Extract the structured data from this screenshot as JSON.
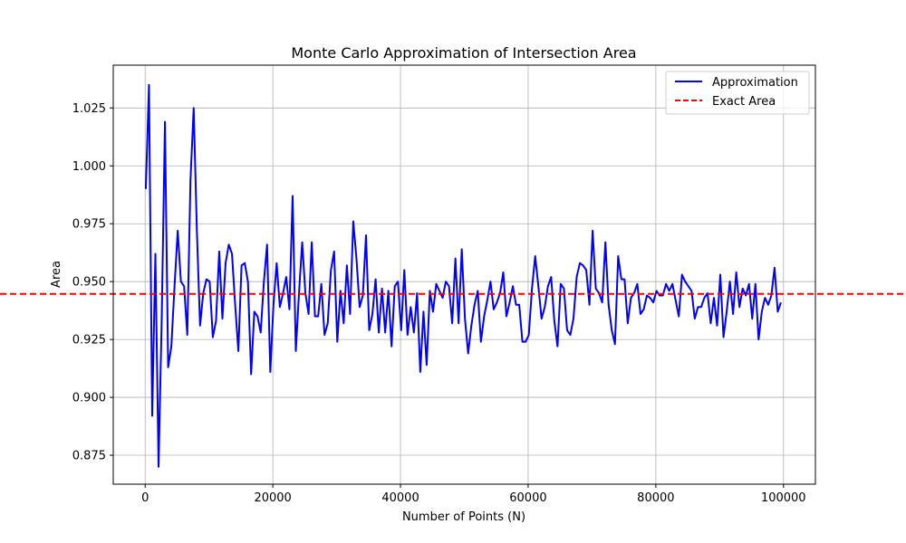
{
  "chart_data": {
    "type": "line",
    "title": "Monte Carlo Approximation of Intersection Area",
    "xlabel": "Number of Points (N)",
    "ylabel": "Area",
    "xlim": [
      -5000,
      105000
    ],
    "ylim": [
      0.8625,
      1.0435
    ],
    "grid": true,
    "legend_position": "top-right",
    "xticks": [
      0,
      20000,
      40000,
      60000,
      80000,
      100000
    ],
    "xtick_labels": [
      "0",
      "20000",
      "40000",
      "60000",
      "80000",
      "100000"
    ],
    "yticks": [
      0.875,
      0.9,
      0.925,
      0.95,
      0.975,
      1.0,
      1.025
    ],
    "ytick_labels": [
      "0.875",
      "0.900",
      "0.925",
      "0.950",
      "0.975",
      "1.000",
      "1.025"
    ],
    "series": [
      {
        "name": "Approximation",
        "color": "#0000ff",
        "style": "solid",
        "x_start": 100,
        "x_step": 500,
        "values": [
          0.99,
          1.035,
          0.892,
          0.962,
          0.87,
          0.935,
          1.019,
          0.913,
          0.922,
          0.948,
          0.972,
          0.95,
          0.948,
          0.927,
          0.994,
          1.025,
          0.972,
          0.931,
          0.945,
          0.951,
          0.95,
          0.926,
          0.933,
          0.963,
          0.934,
          0.958,
          0.966,
          0.962,
          0.94,
          0.92,
          0.957,
          0.958,
          0.95,
          0.91,
          0.937,
          0.935,
          0.928,
          0.95,
          0.966,
          0.911,
          0.94,
          0.958,
          0.939,
          0.945,
          0.952,
          0.938,
          0.987,
          0.92,
          0.945,
          0.967,
          0.945,
          0.936,
          0.967,
          0.935,
          0.935,
          0.949,
          0.927,
          0.932,
          0.955,
          0.963,
          0.924,
          0.946,
          0.932,
          0.957,
          0.936,
          0.976,
          0.96,
          0.939,
          0.944,
          0.97,
          0.929,
          0.936,
          0.951,
          0.928,
          0.947,
          0.928,
          0.946,
          0.922,
          0.948,
          0.95,
          0.929,
          0.955,
          0.927,
          0.939,
          0.928,
          0.945,
          0.911,
          0.937,
          0.914,
          0.946,
          0.937,
          0.949,
          0.946,
          0.943,
          0.95,
          0.948,
          0.932,
          0.96,
          0.932,
          0.964,
          0.934,
          0.919,
          0.931,
          0.94,
          0.946,
          0.924,
          0.935,
          0.942,
          0.95,
          0.938,
          0.941,
          0.945,
          0.954,
          0.935,
          0.941,
          0.948,
          0.94,
          0.94,
          0.924,
          0.924,
          0.927,
          0.947,
          0.961,
          0.948,
          0.934,
          0.939,
          0.948,
          0.952,
          0.933,
          0.922,
          0.949,
          0.947,
          0.929,
          0.927,
          0.934,
          0.952,
          0.958,
          0.957,
          0.955,
          0.94,
          0.972,
          0.947,
          0.945,
          0.941,
          0.967,
          0.94,
          0.929,
          0.923,
          0.961,
          0.951,
          0.951,
          0.932,
          0.943,
          0.945,
          0.949,
          0.936,
          0.938,
          0.944,
          0.943,
          0.941,
          0.946,
          0.944,
          0.944,
          0.949,
          0.946,
          0.949,
          0.942,
          0.935,
          0.953,
          0.95,
          0.948,
          0.946,
          0.934,
          0.939,
          0.939,
          0.943,
          0.945,
          0.932,
          0.943,
          0.931,
          0.953,
          0.926,
          0.937,
          0.95,
          0.936,
          0.954,
          0.939,
          0.947,
          0.944,
          0.949,
          0.934,
          0.949,
          0.925,
          0.937,
          0.943,
          0.94,
          0.944,
          0.956,
          0.937,
          0.941
        ]
      },
      {
        "name": "Exact Area",
        "color": "#ff0000",
        "style": "dashed",
        "y_constant": 0.9447
      }
    ]
  }
}
